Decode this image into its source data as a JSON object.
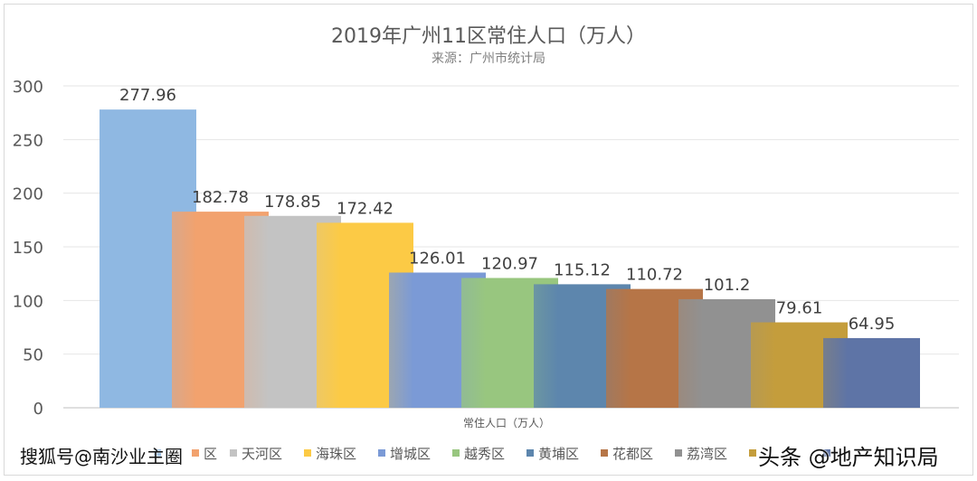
{
  "chart_data": {
    "type": "bar",
    "title": "2019年广州11区常住人口（万人）",
    "subtitle": "来源：广州市统计局",
    "categories": [
      "常住人口（万人）"
    ],
    "ylim": [
      0,
      300
    ],
    "yticks": [
      0,
      50,
      100,
      150,
      200,
      250,
      300
    ],
    "grid": true,
    "legend_position": "bottom",
    "series": [
      {
        "name": "",
        "value": 277.96,
        "label": "277.96",
        "color": "#8fb8e2"
      },
      {
        "name": "",
        "value": 182.78,
        "label": "182.78",
        "color": "#f2a26e"
      },
      {
        "name": "天河区",
        "value": 178.85,
        "label": "178.85",
        "color": "#c3c3c3"
      },
      {
        "name": "海珠区",
        "value": 172.42,
        "label": "172.42",
        "color": "#fcca45"
      },
      {
        "name": "增城区",
        "value": 126.01,
        "label": "126.01",
        "color": "#7b9ad6"
      },
      {
        "name": "越秀区",
        "value": 120.97,
        "label": "120.97",
        "color": "#98c67f"
      },
      {
        "name": "黄埔区",
        "value": 115.12,
        "label": "115.12",
        "color": "#5d86ad"
      },
      {
        "name": "花都区",
        "value": 110.72,
        "label": "110.72",
        "color": "#b67547"
      },
      {
        "name": "荔湾区",
        "value": 101.2,
        "label": "101.2",
        "color": "#919191"
      },
      {
        "name": "",
        "value": 79.61,
        "label": "79.61",
        "color": "#c49d3c"
      },
      {
        "name": "",
        "value": 64.95,
        "label": "64.95",
        "color": "#5e74a6"
      }
    ],
    "legend_partial_first": "区"
  },
  "watermarks": {
    "left": "搜狐号@南沙业主圈",
    "right": "头条 @地产知识局"
  }
}
